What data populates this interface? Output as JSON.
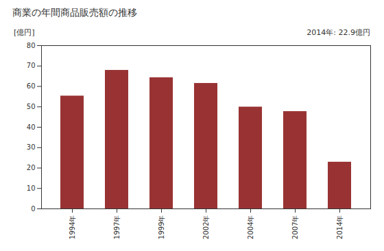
{
  "chart_data": {
    "type": "bar",
    "title": "商業の年間商品販売額の推移",
    "y_label": "[億円]",
    "annotation": "2014年: 22.9億円",
    "categories": [
      "1994年",
      "1997年",
      "1999年",
      "2002年",
      "2004年",
      "2007年",
      "2014年"
    ],
    "values": [
      55.3,
      67.9,
      64.3,
      61.5,
      49.9,
      47.7,
      22.9
    ],
    "color": "#993333",
    "ylim": [
      0,
      80
    ],
    "yticks": [
      0,
      10,
      20,
      30,
      40,
      50,
      60,
      70,
      80
    ],
    "grid": false
  }
}
